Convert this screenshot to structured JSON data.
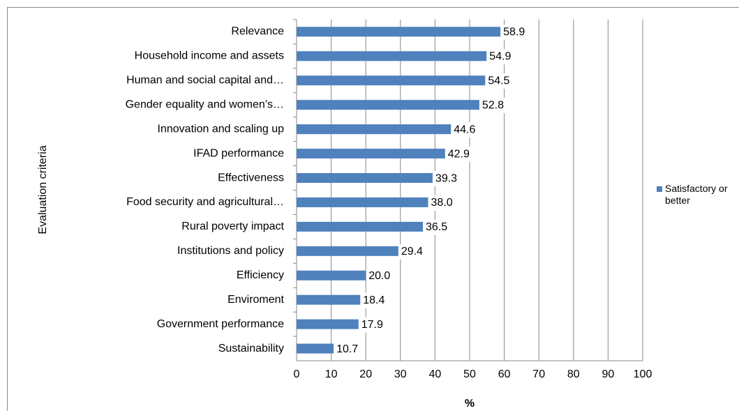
{
  "chart_data": {
    "type": "bar",
    "orientation": "horizontal",
    "ylabel": "Evaluation criteria",
    "xlabel": "%",
    "categories": [
      "Relevance",
      "Household income and assets",
      "Human and social capital and…",
      "Gender equality and women’s…",
      "Innovation and scaling up",
      "IFAD performance",
      "Effectiveness",
      "Food security and agricultural…",
      "Rural poverty impact",
      "Institutions and policy",
      "Efficiency",
      "Enviroment",
      "Government performance",
      "Sustainability"
    ],
    "series": [
      {
        "name": "Satisfactory or better",
        "color": "#4f81bd",
        "values": [
          58.9,
          54.9,
          54.5,
          52.8,
          44.6,
          42.9,
          39.3,
          38,
          36.5,
          29.4,
          20,
          18.4,
          17.9,
          10.7
        ],
        "value_labels": [
          "58.9",
          "54.9",
          "54.5",
          "52.8",
          "44.6",
          "42.9",
          "39.3",
          "38.0",
          "36.5",
          "29.4",
          "20.0",
          "18.4",
          "17.9",
          "10.7"
        ]
      }
    ],
    "xlim": [
      0,
      100
    ],
    "xticks": [
      0,
      10,
      20,
      30,
      40,
      50,
      60,
      70,
      80,
      90,
      100
    ],
    "grid": true,
    "legend": "right"
  }
}
